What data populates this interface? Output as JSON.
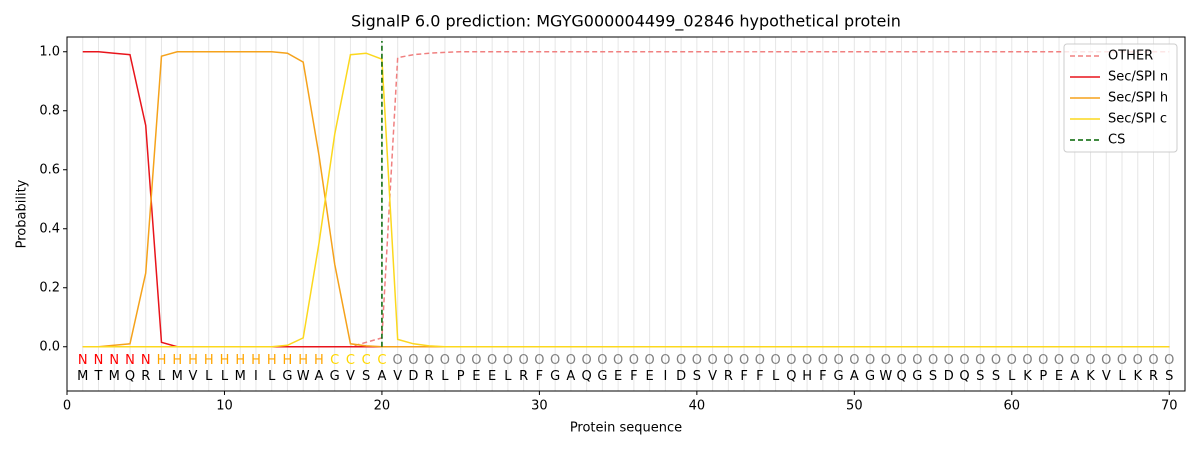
{
  "chart_data": {
    "type": "line",
    "title": "SignalP 6.0 prediction: MGYG000004499_02846 hypothetical protein",
    "xlabel": "Protein sequence",
    "ylabel": "Probability",
    "x": [
      1,
      2,
      3,
      4,
      5,
      6,
      7,
      8,
      9,
      10,
      11,
      12,
      13,
      14,
      15,
      16,
      17,
      18,
      19,
      20,
      21,
      22,
      23,
      24,
      25,
      26,
      27,
      28,
      29,
      30,
      31,
      32,
      33,
      34,
      35,
      36,
      37,
      38,
      39,
      40,
      41,
      42,
      43,
      44,
      45,
      46,
      47,
      48,
      49,
      50,
      51,
      52,
      53,
      54,
      55,
      56,
      57,
      58,
      59,
      60,
      61,
      62,
      63,
      64,
      65,
      66,
      67,
      68,
      69,
      70
    ],
    "sequence": [
      "M",
      "T",
      "M",
      "Q",
      "R",
      "L",
      "M",
      "V",
      "L",
      "L",
      "M",
      "I",
      "L",
      "G",
      "W",
      "A",
      "G",
      "V",
      "S",
      "A",
      "V",
      "D",
      "R",
      "L",
      "P",
      "E",
      "E",
      "L",
      "R",
      "F",
      "G",
      "A",
      "Q",
      "G",
      "E",
      "F",
      "E",
      "I",
      "D",
      "S",
      "V",
      "R",
      "F",
      "F",
      "L",
      "Q",
      "H",
      "F",
      "G",
      "A",
      "G",
      "W",
      "Q",
      "G",
      "S",
      "D",
      "Q",
      "S",
      "S",
      "L",
      "K",
      "P",
      "E",
      "A",
      "K",
      "V",
      "L",
      "K",
      "R",
      "S"
    ],
    "labels": [
      "N",
      "N",
      "N",
      "N",
      "N",
      "H",
      "H",
      "H",
      "H",
      "H",
      "H",
      "H",
      "H",
      "H",
      "H",
      "H",
      "C",
      "C",
      "C",
      "C",
      "O",
      "O",
      "O",
      "O",
      "O",
      "O",
      "O",
      "O",
      "O",
      "O",
      "O",
      "O",
      "O",
      "O",
      "O",
      "O",
      "O",
      "O",
      "O",
      "O",
      "O",
      "O",
      "O",
      "O",
      "O",
      "O",
      "O",
      "O",
      "O",
      "O",
      "O",
      "O",
      "O",
      "O",
      "O",
      "O",
      "O",
      "O",
      "O",
      "O",
      "O",
      "O",
      "O",
      "O",
      "O",
      "O",
      "O",
      "O",
      "O",
      "O"
    ],
    "label_colors": {
      "N": "red",
      "H": "orange",
      "C": "gold",
      "O": "gray"
    },
    "series": [
      {
        "name": "OTHER",
        "color": "#f08080",
        "dash": true,
        "values": [
          0,
          0,
          0,
          0,
          0,
          0,
          0,
          0,
          0,
          0,
          0,
          0,
          0,
          0,
          0,
          0,
          0,
          0,
          0.015,
          0.03,
          0.98,
          0.99,
          0.995,
          0.998,
          1,
          1,
          1,
          1,
          1,
          1,
          1,
          1,
          1,
          1,
          1,
          1,
          1,
          1,
          1,
          1,
          1,
          1,
          1,
          1,
          1,
          1,
          1,
          1,
          1,
          1,
          1,
          1,
          1,
          1,
          1,
          1,
          1,
          1,
          1,
          1,
          1,
          1,
          1,
          1,
          1,
          1,
          1,
          1,
          1,
          1
        ]
      },
      {
        "name": "Sec/SPI n",
        "color": "#e8141b",
        "dash": false,
        "values": [
          1,
          1,
          0.995,
          0.99,
          0.75,
          0.015,
          0,
          0,
          0,
          0,
          0,
          0,
          0,
          0,
          0,
          0,
          0,
          0,
          0,
          0,
          0,
          0,
          0,
          0,
          0,
          0,
          0,
          0,
          0,
          0,
          0,
          0,
          0,
          0,
          0,
          0,
          0,
          0,
          0,
          0,
          0,
          0,
          0,
          0,
          0,
          0,
          0,
          0,
          0,
          0,
          0,
          0,
          0,
          0,
          0,
          0,
          0,
          0,
          0,
          0,
          0,
          0,
          0,
          0,
          0,
          0,
          0,
          0,
          0,
          0
        ]
      },
      {
        "name": "Sec/SPI h",
        "color": "#f5a21b",
        "dash": false,
        "values": [
          0,
          0,
          0.005,
          0.01,
          0.25,
          0.985,
          1,
          1,
          1,
          1,
          1,
          1,
          1,
          0.995,
          0.965,
          0.65,
          0.28,
          0.01,
          0.003,
          0,
          0,
          0,
          0,
          0,
          0,
          0,
          0,
          0,
          0,
          0,
          0,
          0,
          0,
          0,
          0,
          0,
          0,
          0,
          0,
          0,
          0,
          0,
          0,
          0,
          0,
          0,
          0,
          0,
          0,
          0,
          0,
          0,
          0,
          0,
          0,
          0,
          0,
          0,
          0,
          0,
          0,
          0,
          0,
          0,
          0,
          0,
          0,
          0,
          0,
          0
        ]
      },
      {
        "name": "Sec/SPI c",
        "color": "#fcd81e",
        "dash": false,
        "values": [
          0,
          0,
          0,
          0,
          0,
          0,
          0,
          0,
          0,
          0,
          0,
          0,
          0,
          0.005,
          0.03,
          0.35,
          0.72,
          0.99,
          0.995,
          0.975,
          0.025,
          0.01,
          0.003,
          0,
          0,
          0,
          0,
          0,
          0,
          0,
          0,
          0,
          0,
          0,
          0,
          0,
          0,
          0,
          0,
          0,
          0,
          0,
          0,
          0,
          0,
          0,
          0,
          0,
          0,
          0,
          0,
          0,
          0,
          0,
          0,
          0,
          0,
          0,
          0,
          0,
          0,
          0,
          0,
          0,
          0,
          0,
          0,
          0,
          0,
          0
        ]
      }
    ],
    "cs": {
      "name": "CS",
      "color": "darkgreen",
      "x": 20
    },
    "xlim": [
      0,
      71
    ],
    "ylim": [
      -0.15,
      1.05
    ],
    "xticks": [
      0,
      10,
      20,
      30,
      40,
      50,
      60,
      70
    ],
    "yticks": [
      {
        "value": 0,
        "label": "0.0"
      },
      0.2,
      0.4,
      0.6,
      0.8,
      {
        "value": 1,
        "label": "1.0"
      }
    ],
    "grid": true,
    "legend": "upper right"
  }
}
